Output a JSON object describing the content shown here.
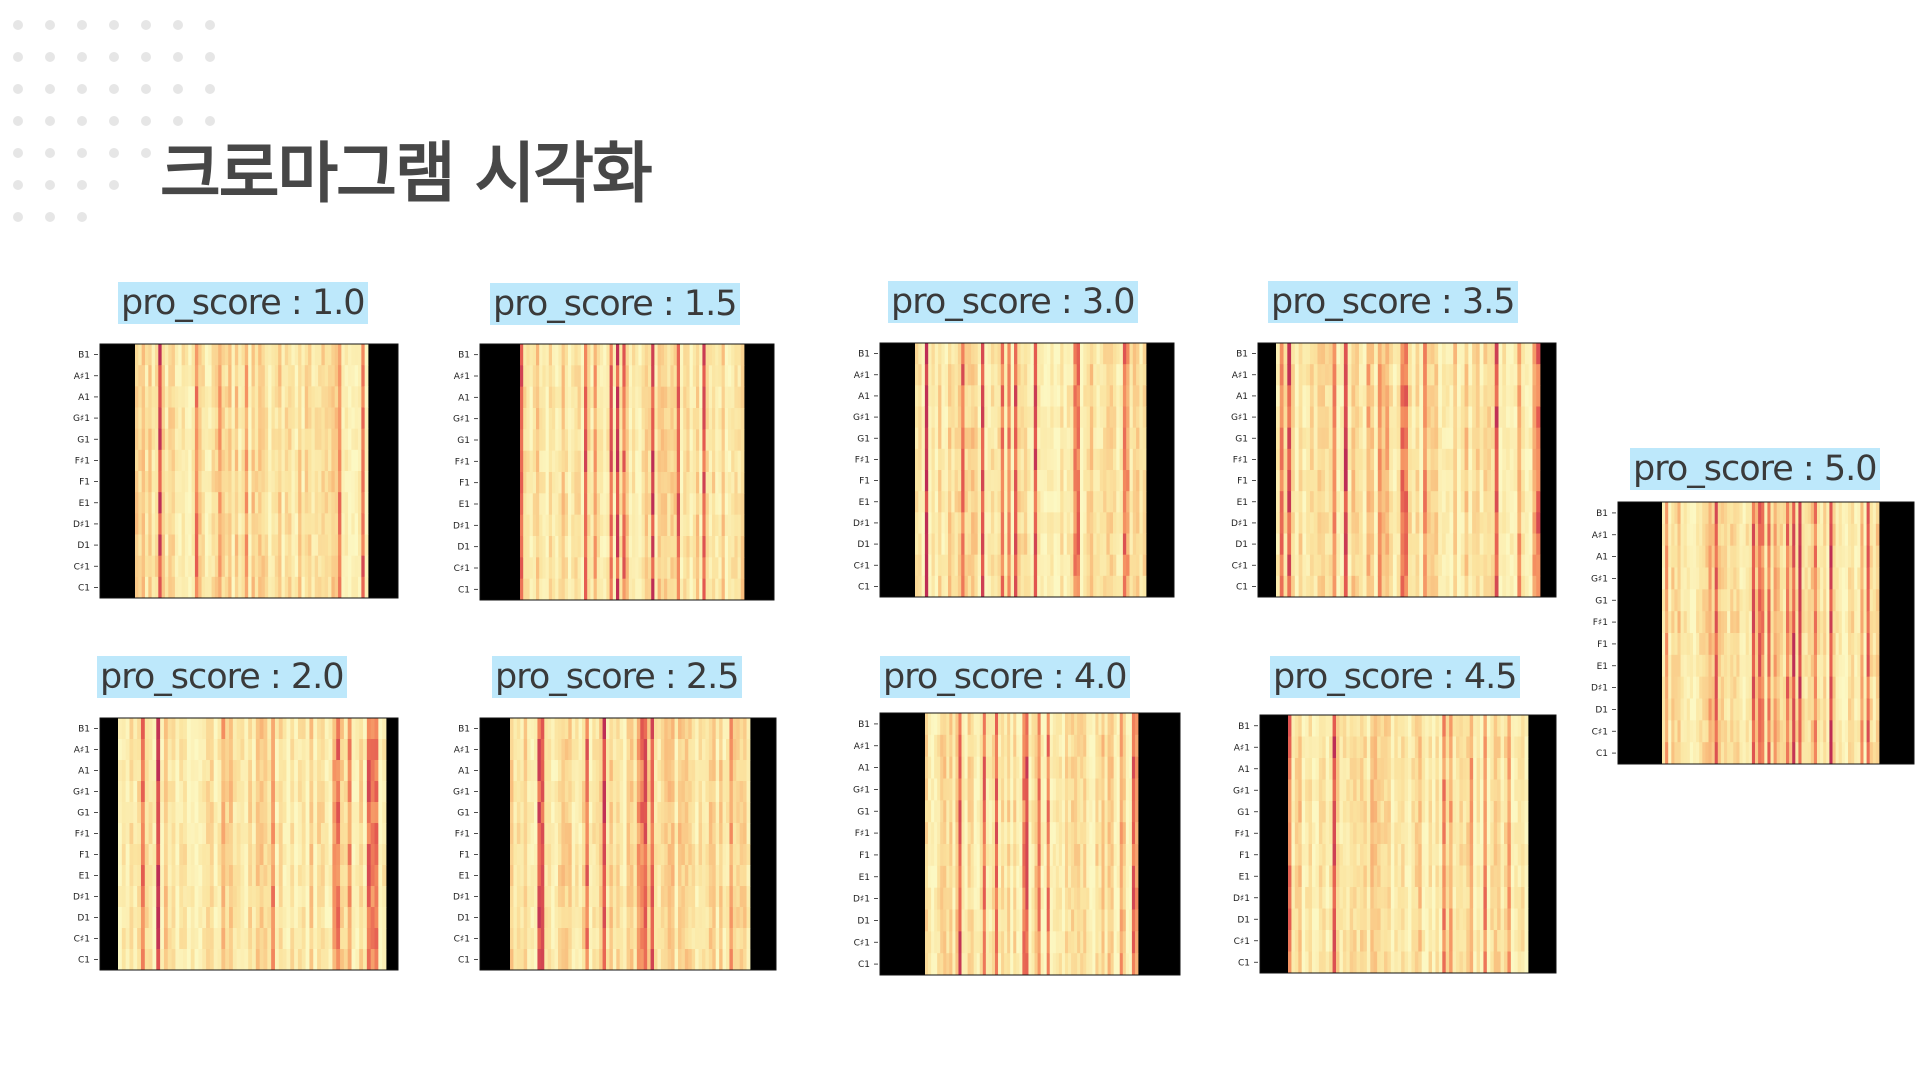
{
  "title": "크로마그램 시각화",
  "y_ticks": [
    "B1",
    "A♯1",
    "A1",
    "G♯1",
    "G1",
    "F♯1",
    "F1",
    "E1",
    "D♯1",
    "D1",
    "C♯1",
    "C1"
  ],
  "colors": {
    "label_highlight": "#bde8fb",
    "title": "#474747",
    "padding": "#000000"
  },
  "panels": [
    {
      "label": "pro_score : 1.0",
      "intensity": 0.15
    },
    {
      "label": "pro_score : 1.5",
      "intensity": 0.25
    },
    {
      "label": "pro_score : 3.0",
      "intensity": 0.55
    },
    {
      "label": "pro_score : 3.5",
      "intensity": 0.45
    },
    {
      "label": "pro_score : 2.0",
      "intensity": 0.35
    },
    {
      "label": "pro_score : 2.5",
      "intensity": 0.5
    },
    {
      "label": "pro_score : 4.0",
      "intensity": 0.45
    },
    {
      "label": "pro_score : 4.5",
      "intensity": 0.4
    },
    {
      "label": "pro_score : 5.0",
      "intensity": 0.55
    }
  ]
}
